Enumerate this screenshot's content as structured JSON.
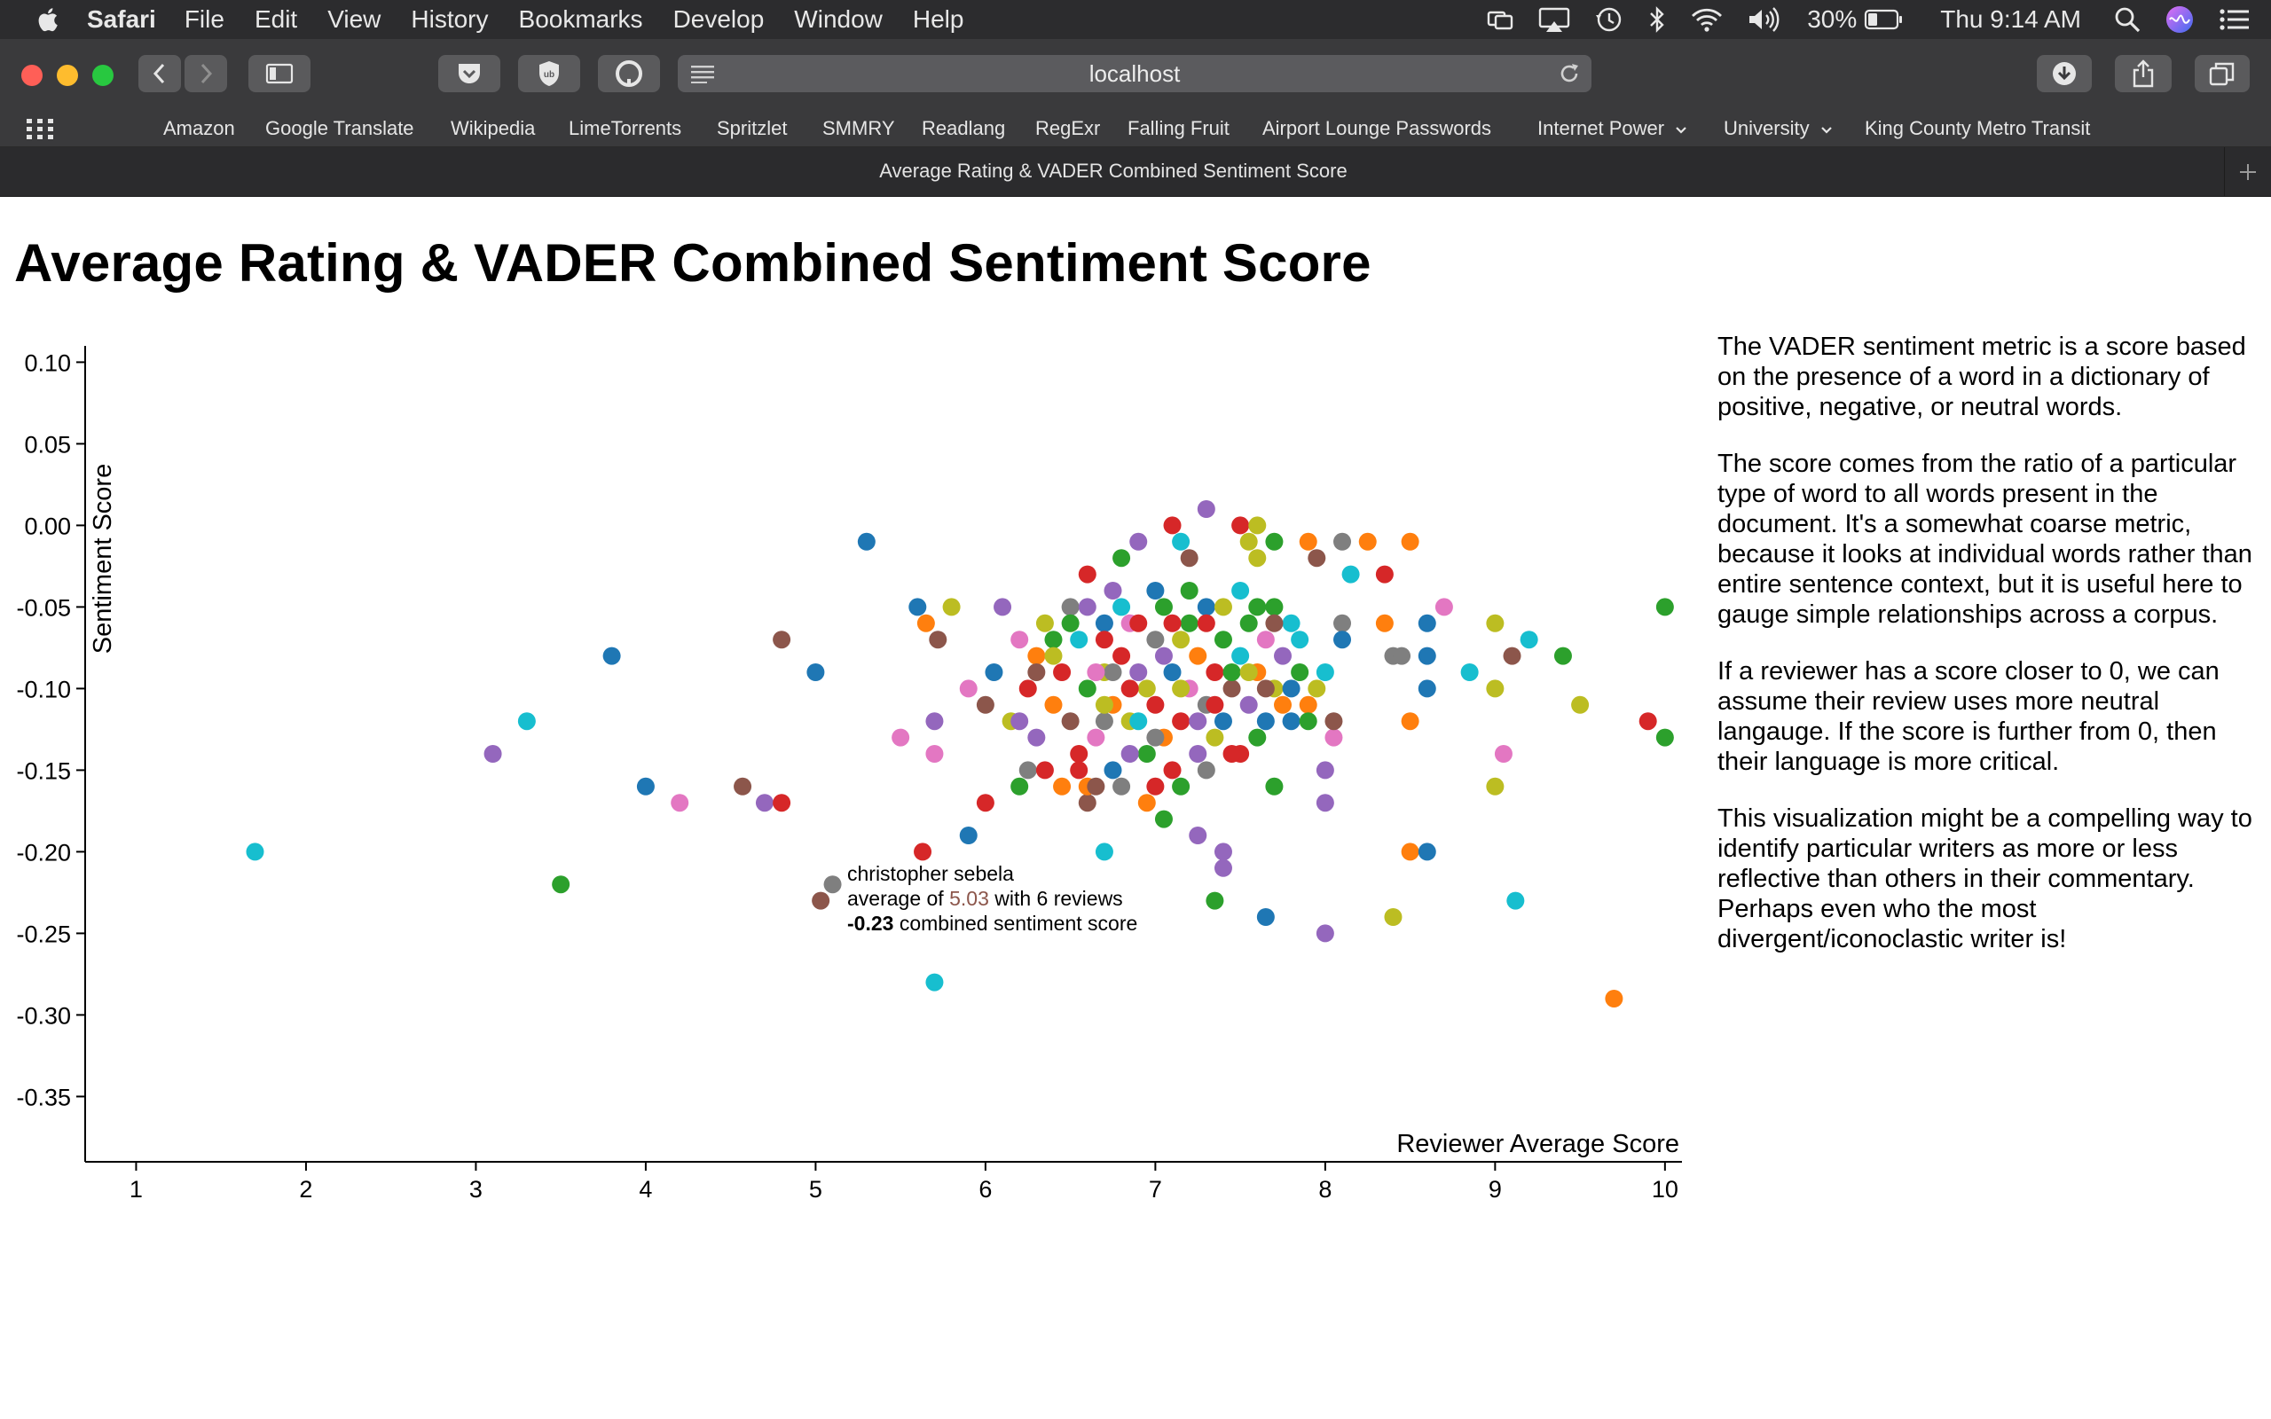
{
  "menubar": {
    "app": "Safari",
    "items": [
      "File",
      "Edit",
      "View",
      "History",
      "Bookmarks",
      "Develop",
      "Window",
      "Help"
    ],
    "battery": "30%",
    "clock": "Thu 9:14 AM",
    "icons": [
      "screen-mirror-icon",
      "airplay-icon",
      "time-machine-icon",
      "bluetooth-icon",
      "wifi-icon",
      "volume-icon",
      "battery-icon",
      "spotlight-icon",
      "siri-icon",
      "notification-center-icon"
    ]
  },
  "toolbar": {
    "address": "localhost",
    "colors": {
      "close": "#ff5f57",
      "minimize": "#febc2e",
      "zoom": "#28c840"
    }
  },
  "bookmarks": {
    "items": [
      {
        "label": "Amazon",
        "dropdown": false
      },
      {
        "label": "Google Translate",
        "dropdown": false
      },
      {
        "label": "Wikipedia",
        "dropdown": false
      },
      {
        "label": "LimeTorrents",
        "dropdown": false
      },
      {
        "label": "Spritzlet",
        "dropdown": false
      },
      {
        "label": "SMMRY",
        "dropdown": false
      },
      {
        "label": "Readlang",
        "dropdown": false
      },
      {
        "label": "RegExr",
        "dropdown": false
      },
      {
        "label": "Falling Fruit",
        "dropdown": false
      },
      {
        "label": "Airport Lounge Passwords",
        "dropdown": false
      },
      {
        "label": "Internet Power",
        "dropdown": true
      },
      {
        "label": "University",
        "dropdown": true
      },
      {
        "label": "King County Metro Transit",
        "dropdown": false
      }
    ]
  },
  "tab": {
    "title": "Average Rating & VADER Combined Sentiment Score"
  },
  "page": {
    "title": "Average Rating & VADER Combined Sentiment Score",
    "description": [
      "The VADER sentiment metric is a score based on the presence of a word in a dictionary of positive, negative, or neutral words.",
      "The score comes from the ratio of a particular type of word to all words present in the document. It's a somewhat coarse metric, because it looks at individual words rather than entire sentence context, but it is useful here to gauge simple relationships across a corpus.",
      "If a reviewer has a score closer to 0, we can assume their review uses more neutral langauge. If the score is further from 0, then their language is more critical.",
      "This visualization might be a compelling way to identify particular writers as more or less reflective than others in their commentary. Perhaps even who the most divergent/iconoclastic writer is!"
    ]
  },
  "chart_data": {
    "type": "scatter",
    "xlabel": "Reviewer Average Score",
    "ylabel": "Sentiment Score",
    "xlim": [
      0.7,
      10.1
    ],
    "ylim": [
      -0.39,
      0.11
    ],
    "xticks": [
      "1",
      "2",
      "3",
      "4",
      "5",
      "6",
      "7",
      "8",
      "9",
      "10"
    ],
    "yticks": [
      "0.10",
      "0.05",
      "0.00",
      "-0.05",
      "-0.10",
      "-0.15",
      "-0.20",
      "-0.25",
      "-0.30",
      "-0.35"
    ],
    "grid": false,
    "palette": [
      "#1f77b4",
      "#ff7f0e",
      "#2ca02c",
      "#d62728",
      "#9467bd",
      "#8c564b",
      "#e377c2",
      "#7f7f7f",
      "#bcbd22",
      "#17becf"
    ],
    "tooltip": {
      "name": "christopher sebela",
      "prefix": "average of ",
      "average": "5.03",
      "middle": " with 6 reviews",
      "score": "-0.23",
      "suffix": " combined sentiment score",
      "average_color": "#8c564b"
    },
    "points": [
      [
        1.7,
        -0.2,
        9
      ],
      [
        3.1,
        -0.14,
        4
      ],
      [
        3.3,
        -0.12,
        9
      ],
      [
        3.5,
        -0.22,
        2
      ],
      [
        3.8,
        -0.08,
        0
      ],
      [
        4.0,
        -0.16,
        0
      ],
      [
        4.2,
        -0.17,
        6
      ],
      [
        4.57,
        -0.16,
        5
      ],
      [
        4.7,
        -0.17,
        4
      ],
      [
        4.8,
        -0.17,
        3
      ],
      [
        4.8,
        -0.07,
        5
      ],
      [
        5.0,
        -0.09,
        0
      ],
      [
        5.03,
        -0.23,
        5
      ],
      [
        5.1,
        -0.22,
        7
      ],
      [
        5.3,
        -0.01,
        0
      ],
      [
        5.5,
        -0.13,
        6
      ],
      [
        5.6,
        -0.05,
        0
      ],
      [
        5.65,
        -0.06,
        1
      ],
      [
        5.7,
        -0.12,
        4
      ],
      [
        5.7,
        -0.14,
        6
      ],
      [
        5.7,
        -0.28,
        9
      ],
      [
        5.72,
        -0.07,
        5
      ],
      [
        5.8,
        -0.05,
        8
      ],
      [
        5.9,
        -0.19,
        0
      ],
      [
        5.9,
        -0.1,
        6
      ],
      [
        6.0,
        -0.11,
        5
      ],
      [
        6.0,
        -0.17,
        3
      ],
      [
        6.1,
        -0.05,
        4
      ],
      [
        6.2,
        -0.16,
        2
      ],
      [
        6.25,
        -0.15,
        7
      ],
      [
        6.3,
        -0.08,
        1
      ],
      [
        6.4,
        -0.07,
        2
      ],
      [
        6.5,
        -0.05,
        7
      ],
      [
        6.6,
        -0.17,
        5
      ],
      [
        6.6,
        -0.16,
        1
      ],
      [
        6.6,
        -0.03,
        3
      ],
      [
        6.7,
        -0.09,
        8
      ],
      [
        6.7,
        -0.12,
        7
      ],
      [
        6.75,
        -0.04,
        4
      ],
      [
        6.8,
        -0.02,
        2
      ],
      [
        6.8,
        -0.16,
        7
      ],
      [
        6.85,
        -0.06,
        6
      ],
      [
        6.9,
        -0.01,
        4
      ],
      [
        6.95,
        -0.17,
        1
      ],
      [
        7.0,
        -0.16,
        3
      ],
      [
        7.05,
        -0.18,
        2
      ],
      [
        7.1,
        0.0,
        3
      ],
      [
        7.15,
        -0.01,
        9
      ],
      [
        7.2,
        -0.02,
        5
      ],
      [
        7.25,
        -0.19,
        4
      ],
      [
        7.3,
        0.01,
        4
      ],
      [
        7.35,
        -0.23,
        2
      ],
      [
        7.4,
        -0.2,
        4
      ],
      [
        7.4,
        -0.21,
        4
      ],
      [
        7.5,
        0.0,
        3
      ],
      [
        7.55,
        -0.01,
        8
      ],
      [
        7.6,
        0.0,
        8
      ],
      [
        7.6,
        -0.02,
        8
      ],
      [
        7.65,
        -0.24,
        0
      ],
      [
        7.7,
        -0.16,
        2
      ],
      [
        7.7,
        -0.01,
        2
      ],
      [
        7.8,
        -0.06,
        9
      ],
      [
        7.9,
        -0.01,
        1
      ],
      [
        7.95,
        -0.02,
        5
      ],
      [
        8.0,
        -0.25,
        4
      ],
      [
        8.0,
        -0.17,
        4
      ],
      [
        8.0,
        -0.15,
        4
      ],
      [
        8.05,
        -0.13,
        6
      ],
      [
        8.1,
        -0.06,
        7
      ],
      [
        8.1,
        -0.01,
        7
      ],
      [
        8.15,
        -0.03,
        9
      ],
      [
        8.25,
        -0.01,
        1
      ],
      [
        8.35,
        -0.06,
        1
      ],
      [
        8.35,
        -0.03,
        3
      ],
      [
        8.4,
        -0.24,
        8
      ],
      [
        8.4,
        -0.08,
        7
      ],
      [
        8.45,
        -0.08,
        7
      ],
      [
        8.5,
        -0.01,
        1
      ],
      [
        8.5,
        -0.12,
        1
      ],
      [
        8.5,
        -0.2,
        1
      ],
      [
        8.6,
        -0.2,
        0
      ],
      [
        8.6,
        -0.1,
        0
      ],
      [
        8.6,
        -0.08,
        0
      ],
      [
        8.6,
        -0.06,
        0
      ],
      [
        8.7,
        -0.05,
        6
      ],
      [
        8.85,
        -0.09,
        9
      ],
      [
        9.0,
        -0.06,
        8
      ],
      [
        9.0,
        -0.1,
        8
      ],
      [
        9.0,
        -0.16,
        8
      ],
      [
        9.05,
        -0.14,
        6
      ],
      [
        9.1,
        -0.08,
        5
      ],
      [
        9.12,
        -0.23,
        9
      ],
      [
        9.2,
        -0.07,
        9
      ],
      [
        9.4,
        -0.08,
        2
      ],
      [
        9.5,
        -0.11,
        8
      ],
      [
        9.7,
        -0.29,
        1
      ],
      [
        9.9,
        -0.12,
        3
      ],
      [
        10.0,
        -0.05,
        2
      ],
      [
        10.0,
        -0.13,
        2
      ],
      [
        6.7,
        -0.2,
        9
      ],
      [
        5.63,
        -0.2,
        3
      ],
      [
        6.05,
        -0.09,
        0
      ],
      [
        6.15,
        -0.12,
        8
      ],
      [
        6.2,
        -0.07,
        6
      ],
      [
        6.25,
        -0.1,
        3
      ],
      [
        6.3,
        -0.13,
        4
      ],
      [
        6.35,
        -0.06,
        8
      ],
      [
        6.4,
        -0.11,
        1
      ],
      [
        6.45,
        -0.09,
        3
      ],
      [
        6.5,
        -0.12,
        5
      ],
      [
        6.55,
        -0.07,
        9
      ],
      [
        6.55,
        -0.14,
        3
      ],
      [
        6.6,
        -0.1,
        2
      ],
      [
        6.65,
        -0.13,
        6
      ],
      [
        6.7,
        -0.06,
        0
      ],
      [
        6.75,
        -0.11,
        1
      ],
      [
        6.8,
        -0.08,
        3
      ],
      [
        6.85,
        -0.12,
        8
      ],
      [
        6.9,
        -0.09,
        4
      ],
      [
        6.95,
        -0.14,
        2
      ],
      [
        7.0,
        -0.07,
        7
      ],
      [
        7.0,
        -0.11,
        3
      ],
      [
        7.05,
        -0.05,
        2
      ],
      [
        7.05,
        -0.13,
        1
      ],
      [
        7.1,
        -0.09,
        0
      ],
      [
        7.1,
        -0.15,
        3
      ],
      [
        7.15,
        -0.07,
        8
      ],
      [
        7.15,
        -0.12,
        3
      ],
      [
        7.2,
        -0.1,
        6
      ],
      [
        7.2,
        -0.06,
        2
      ],
      [
        7.25,
        -0.14,
        4
      ],
      [
        7.25,
        -0.08,
        1
      ],
      [
        7.3,
        -0.11,
        7
      ],
      [
        7.3,
        -0.05,
        0
      ],
      [
        7.35,
        -0.09,
        3
      ],
      [
        7.35,
        -0.13,
        8
      ],
      [
        7.4,
        -0.07,
        2
      ],
      [
        7.4,
        -0.12,
        0
      ],
      [
        7.45,
        -0.1,
        5
      ],
      [
        7.5,
        -0.08,
        9
      ],
      [
        7.5,
        -0.14,
        3
      ],
      [
        7.55,
        -0.06,
        2
      ],
      [
        7.55,
        -0.11,
        4
      ],
      [
        7.6,
        -0.09,
        1
      ],
      [
        7.6,
        -0.13,
        2
      ],
      [
        7.65,
        -0.07,
        6
      ],
      [
        7.65,
        -0.12,
        0
      ],
      [
        7.7,
        -0.1,
        8
      ],
      [
        7.7,
        -0.05,
        2
      ],
      [
        7.75,
        -0.08,
        4
      ],
      [
        7.8,
        -0.12,
        0
      ],
      [
        7.85,
        -0.09,
        2
      ],
      [
        7.85,
        -0.07,
        9
      ],
      [
        7.9,
        -0.11,
        1
      ],
      [
        7.95,
        -0.1,
        8
      ],
      [
        8.0,
        -0.09,
        9
      ],
      [
        8.05,
        -0.12,
        5
      ],
      [
        8.1,
        -0.07,
        0
      ],
      [
        6.35,
        -0.15,
        3
      ],
      [
        6.45,
        -0.16,
        1
      ],
      [
        6.55,
        -0.15,
        3
      ],
      [
        6.65,
        -0.16,
        5
      ],
      [
        6.75,
        -0.15,
        0
      ],
      [
        6.85,
        -0.14,
        4
      ],
      [
        7.0,
        -0.13,
        7
      ],
      [
        7.15,
        -0.16,
        2
      ],
      [
        7.3,
        -0.15,
        7
      ],
      [
        7.45,
        -0.14,
        3
      ],
      [
        6.2,
        -0.12,
        4
      ],
      [
        6.3,
        -0.09,
        5
      ],
      [
        6.4,
        -0.08,
        8
      ],
      [
        6.5,
        -0.06,
        2
      ],
      [
        6.6,
        -0.05,
        4
      ],
      [
        6.7,
        -0.07,
        3
      ],
      [
        6.8,
        -0.05,
        9
      ],
      [
        6.9,
        -0.06,
        3
      ],
      [
        7.0,
        -0.04,
        0
      ],
      [
        7.1,
        -0.06,
        3
      ],
      [
        7.2,
        -0.04,
        2
      ],
      [
        7.3,
        -0.06,
        3
      ],
      [
        7.4,
        -0.05,
        8
      ],
      [
        7.5,
        -0.04,
        9
      ],
      [
        7.6,
        -0.05,
        2
      ],
      [
        7.7,
        -0.06,
        5
      ],
      [
        6.95,
        -0.1,
        8
      ],
      [
        7.05,
        -0.08,
        4
      ],
      [
        7.15,
        -0.1,
        8
      ],
      [
        7.25,
        -0.12,
        4
      ],
      [
        7.35,
        -0.11,
        3
      ],
      [
        6.75,
        -0.09,
        7
      ],
      [
        6.65,
        -0.09,
        6
      ],
      [
        6.85,
        -0.1,
        3
      ],
      [
        6.9,
        -0.12,
        9
      ],
      [
        6.7,
        -0.11,
        8
      ],
      [
        7.45,
        -0.09,
        2
      ],
      [
        7.55,
        -0.09,
        8
      ],
      [
        7.65,
        -0.1,
        5
      ],
      [
        7.75,
        -0.11,
        1
      ],
      [
        7.8,
        -0.1,
        0
      ],
      [
        7.9,
        -0.12,
        2
      ]
    ]
  }
}
